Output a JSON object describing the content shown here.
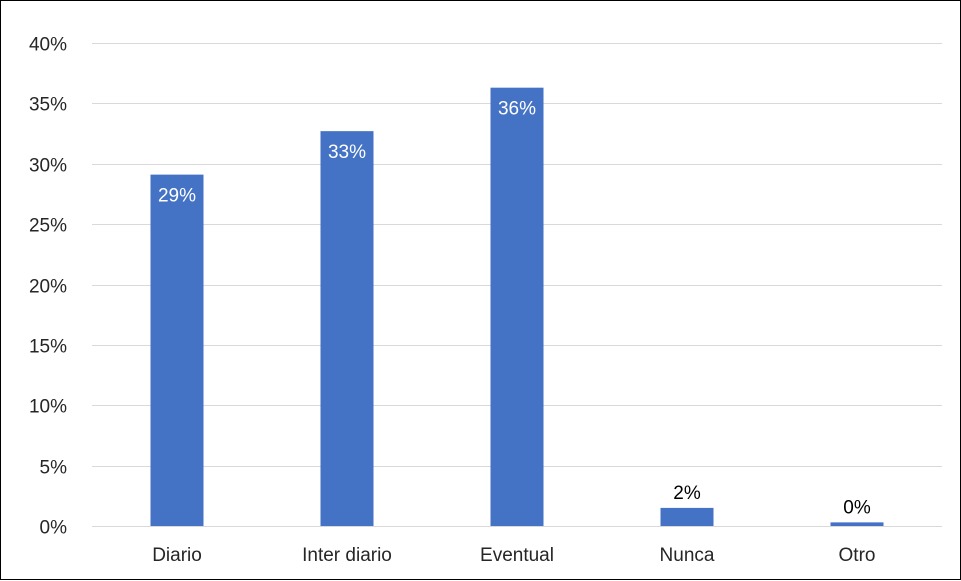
{
  "chart_data": {
    "type": "bar",
    "categories": [
      "Diario",
      "Inter diario",
      "Eventual",
      "Nunca",
      "Otro"
    ],
    "values": [
      29.1,
      32.7,
      36.3,
      1.5,
      0.3
    ],
    "data_labels": [
      "29%",
      "33%",
      "36%",
      "2%",
      "0%"
    ],
    "title": "",
    "xlabel": "",
    "ylabel": "",
    "ylim": [
      0,
      40
    ],
    "yticks": [
      0,
      5,
      10,
      15,
      20,
      25,
      30,
      35,
      40
    ],
    "ytick_labels": [
      "0%",
      "5%",
      "10%",
      "15%",
      "20%",
      "25%",
      "30%",
      "35%",
      "40%"
    ],
    "grid": true,
    "legend": "none",
    "colors": {
      "bar": "#4472C4",
      "gridline": "#D9D9D9",
      "axis_text": "#262626",
      "label_inside": "#FFFFFF",
      "label_outside": "#000000"
    }
  }
}
